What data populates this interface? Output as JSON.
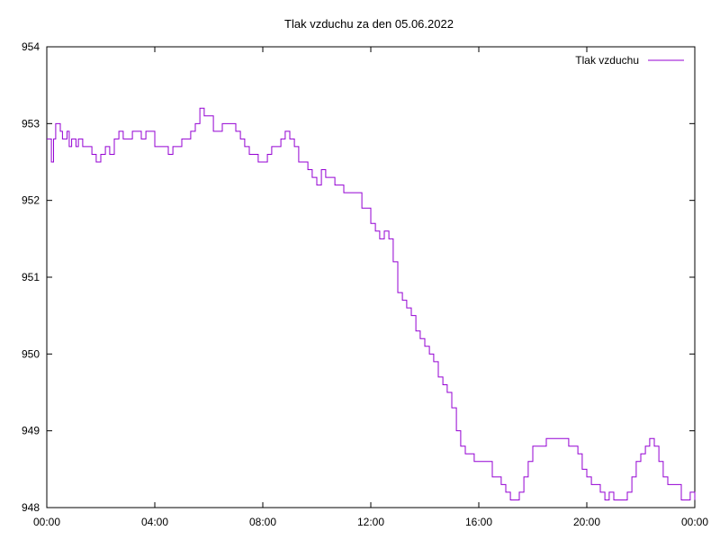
{
  "chart_data": {
    "type": "line",
    "title": "Tlak vzduchu za den 05.06.2022",
    "xlabel": "",
    "ylabel": "",
    "xlim": [
      0,
      24
    ],
    "ylim": [
      948,
      954
    ],
    "x_ticks": [
      "00:00",
      "04:00",
      "08:00",
      "12:00",
      "16:00",
      "20:00",
      "00:00"
    ],
    "y_ticks": [
      948,
      949,
      950,
      951,
      952,
      953,
      954
    ],
    "grid": false,
    "legend_position": "top-right",
    "series": [
      {
        "name": "Tlak vzduchu",
        "color": "#9400d3",
        "x": [
          0.0,
          0.08,
          0.17,
          0.25,
          0.33,
          0.42,
          0.5,
          0.58,
          0.67,
          0.75,
          0.83,
          0.92,
          1.0,
          1.08,
          1.17,
          1.25,
          1.33,
          1.5,
          1.67,
          1.83,
          2.0,
          2.17,
          2.33,
          2.5,
          2.67,
          2.83,
          3.0,
          3.17,
          3.33,
          3.5,
          3.67,
          3.83,
          4.0,
          4.17,
          4.33,
          4.5,
          4.67,
          4.83,
          5.0,
          5.17,
          5.33,
          5.5,
          5.67,
          5.83,
          5.92,
          6.0,
          6.17,
          6.33,
          6.5,
          6.67,
          6.83,
          7.0,
          7.17,
          7.33,
          7.5,
          7.67,
          7.83,
          8.0,
          8.17,
          8.33,
          8.5,
          8.67,
          8.83,
          9.0,
          9.17,
          9.33,
          9.5,
          9.67,
          9.83,
          10.0,
          10.17,
          10.33,
          10.5,
          10.67,
          10.83,
          11.0,
          11.17,
          11.33,
          11.5,
          11.67,
          11.83,
          12.0,
          12.17,
          12.33,
          12.5,
          12.67,
          12.83,
          13.0,
          13.17,
          13.33,
          13.5,
          13.67,
          13.83,
          14.0,
          14.17,
          14.33,
          14.5,
          14.67,
          14.83,
          15.0,
          15.17,
          15.33,
          15.5,
          15.67,
          15.83,
          16.0,
          16.17,
          16.33,
          16.5,
          16.67,
          16.83,
          17.0,
          17.17,
          17.33,
          17.5,
          17.67,
          17.83,
          18.0,
          18.5,
          19.0,
          19.33,
          19.67,
          19.83,
          20.0,
          20.17,
          20.33,
          20.5,
          20.67,
          20.83,
          21.0,
          21.17,
          21.33,
          21.5,
          21.67,
          21.83,
          22.0,
          22.17,
          22.33,
          22.5,
          22.67,
          22.83,
          23.0,
          23.17,
          23.33,
          23.5,
          23.67,
          23.83,
          24.0
        ],
        "y": [
          952.8,
          952.8,
          952.5,
          952.8,
          953.0,
          953.0,
          952.9,
          952.8,
          952.8,
          952.9,
          952.7,
          952.8,
          952.8,
          952.7,
          952.8,
          952.8,
          952.7,
          952.7,
          952.6,
          952.5,
          952.6,
          952.7,
          952.6,
          952.8,
          952.9,
          952.8,
          952.8,
          952.9,
          952.9,
          952.8,
          952.9,
          952.9,
          952.7,
          952.7,
          952.7,
          952.6,
          952.7,
          952.7,
          952.8,
          952.8,
          952.9,
          953.0,
          953.2,
          953.1,
          953.1,
          953.1,
          952.9,
          952.9,
          953.0,
          953.0,
          953.0,
          952.9,
          952.8,
          952.7,
          952.6,
          952.6,
          952.5,
          952.5,
          952.6,
          952.7,
          952.7,
          952.8,
          952.9,
          952.8,
          952.7,
          952.5,
          952.5,
          952.4,
          952.3,
          952.2,
          952.4,
          952.3,
          952.3,
          952.2,
          952.2,
          952.1,
          952.1,
          952.1,
          952.1,
          951.9,
          951.9,
          951.7,
          951.6,
          951.5,
          951.6,
          951.5,
          951.2,
          950.8,
          950.7,
          950.6,
          950.5,
          950.3,
          950.2,
          950.1,
          950.0,
          949.9,
          949.7,
          949.6,
          949.5,
          949.3,
          949.0,
          948.8,
          948.7,
          948.7,
          948.6,
          948.6,
          948.6,
          948.6,
          948.4,
          948.4,
          948.3,
          948.2,
          948.1,
          948.1,
          948.2,
          948.4,
          948.6,
          948.8,
          948.9,
          948.9,
          948.8,
          948.7,
          948.5,
          948.4,
          948.3,
          948.3,
          948.2,
          948.1,
          948.2,
          948.1,
          948.1,
          948.1,
          948.2,
          948.4,
          948.6,
          948.7,
          948.8,
          948.9,
          948.8,
          948.6,
          948.4,
          948.3,
          948.3,
          948.3,
          948.1,
          948.1,
          948.2,
          948.1
        ]
      }
    ]
  }
}
